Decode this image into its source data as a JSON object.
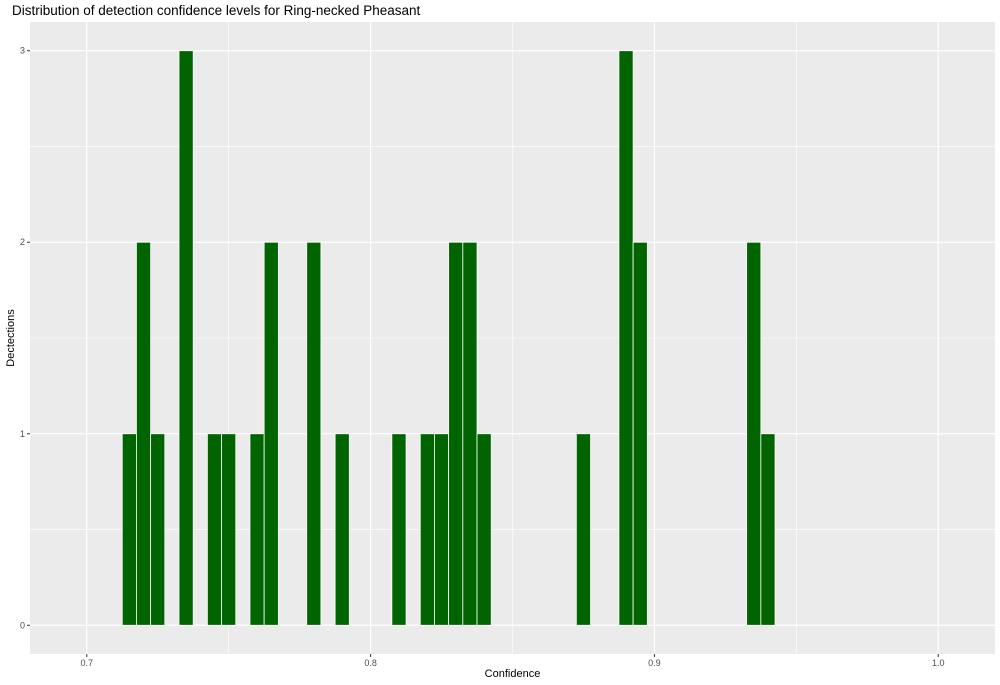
{
  "chart_data": {
    "type": "bar",
    "title": "Distribution of detection confidence levels for Ring-necked Pheasant",
    "xlabel": "Confidence",
    "ylabel": "Dectections",
    "xlim": [
      0.68,
      1.02
    ],
    "ylim": [
      -0.15,
      3.15
    ],
    "x_ticks": [
      0.7,
      0.8,
      0.9,
      1.0
    ],
    "x_tick_labels": [
      "0.7",
      "0.8",
      "0.9",
      "1.0"
    ],
    "y_ticks": [
      0,
      1,
      2,
      3
    ],
    "y_tick_labels": [
      "0",
      "1",
      "2",
      "3"
    ],
    "bin_width": 0.005,
    "grid": true,
    "bar_color": "#006400",
    "panel_color": "#ebebeb",
    "bins": [
      {
        "x": 0.715,
        "count": 1
      },
      {
        "x": 0.72,
        "count": 2
      },
      {
        "x": 0.725,
        "count": 1
      },
      {
        "x": 0.735,
        "count": 3
      },
      {
        "x": 0.745,
        "count": 1
      },
      {
        "x": 0.75,
        "count": 1
      },
      {
        "x": 0.76,
        "count": 1
      },
      {
        "x": 0.765,
        "count": 2
      },
      {
        "x": 0.78,
        "count": 2
      },
      {
        "x": 0.79,
        "count": 1
      },
      {
        "x": 0.81,
        "count": 1
      },
      {
        "x": 0.82,
        "count": 1
      },
      {
        "x": 0.825,
        "count": 1
      },
      {
        "x": 0.83,
        "count": 2
      },
      {
        "x": 0.835,
        "count": 2
      },
      {
        "x": 0.84,
        "count": 1
      },
      {
        "x": 0.875,
        "count": 1
      },
      {
        "x": 0.89,
        "count": 3
      },
      {
        "x": 0.895,
        "count": 2
      },
      {
        "x": 0.935,
        "count": 2
      },
      {
        "x": 0.94,
        "count": 1
      }
    ]
  }
}
